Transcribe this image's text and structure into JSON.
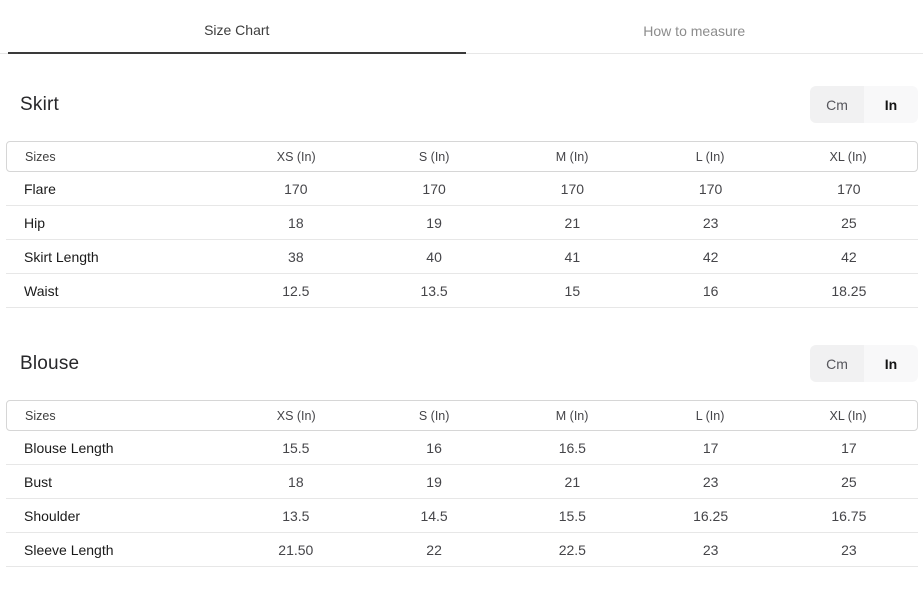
{
  "tabs": {
    "size_chart_label": "Size Chart",
    "how_to_measure_label": "How to measure",
    "active_tab": "Size Chart"
  },
  "unit_toggle": {
    "cm_label": "Cm",
    "in_label": "In",
    "selected_unit": "In"
  },
  "sections": [
    {
      "title": "Skirt",
      "table": {
        "columns": [
          "Sizes",
          "XS (In)",
          "S (In)",
          "M (In)",
          "L (In)",
          "XL (In)"
        ],
        "rows": [
          {
            "label": "Flare",
            "values": [
              "170",
              "170",
              "170",
              "170",
              "170"
            ]
          },
          {
            "label": "Hip",
            "values": [
              "18",
              "19",
              "21",
              "23",
              "25"
            ]
          },
          {
            "label": "Skirt Length",
            "values": [
              "38",
              "40",
              "41",
              "42",
              "42"
            ]
          },
          {
            "label": "Waist",
            "values": [
              "12.5",
              "13.5",
              "15",
              "16",
              "18.25"
            ]
          }
        ]
      }
    },
    {
      "title": "Blouse",
      "table": {
        "columns": [
          "Sizes",
          "XS (In)",
          "S (In)",
          "M (In)",
          "L (In)",
          "XL (In)"
        ],
        "rows": [
          {
            "label": "Blouse Length",
            "values": [
              "15.5",
              "16",
              "16.5",
              "17",
              "17"
            ]
          },
          {
            "label": "Bust",
            "values": [
              "18",
              "19",
              "21",
              "23",
              "25"
            ]
          },
          {
            "label": "Shoulder",
            "values": [
              "13.5",
              "14.5",
              "15.5",
              "16.25",
              "16.75"
            ]
          },
          {
            "label": "Sleeve Length",
            "values": [
              "21.50",
              "22",
              "22.5",
              "23",
              "23"
            ]
          }
        ]
      }
    }
  ],
  "colors": {
    "active_tab_text": "#3d3d3d",
    "active_tab_underline": "#3a3a3a",
    "inactive_tab_text": "#8c8c8c",
    "table_header_border": "#d6d6d6",
    "row_separator": "#e7e7e7",
    "toggle_cm_background": "#f1f1f2",
    "toggle_in_background": "#f8f8f9"
  }
}
